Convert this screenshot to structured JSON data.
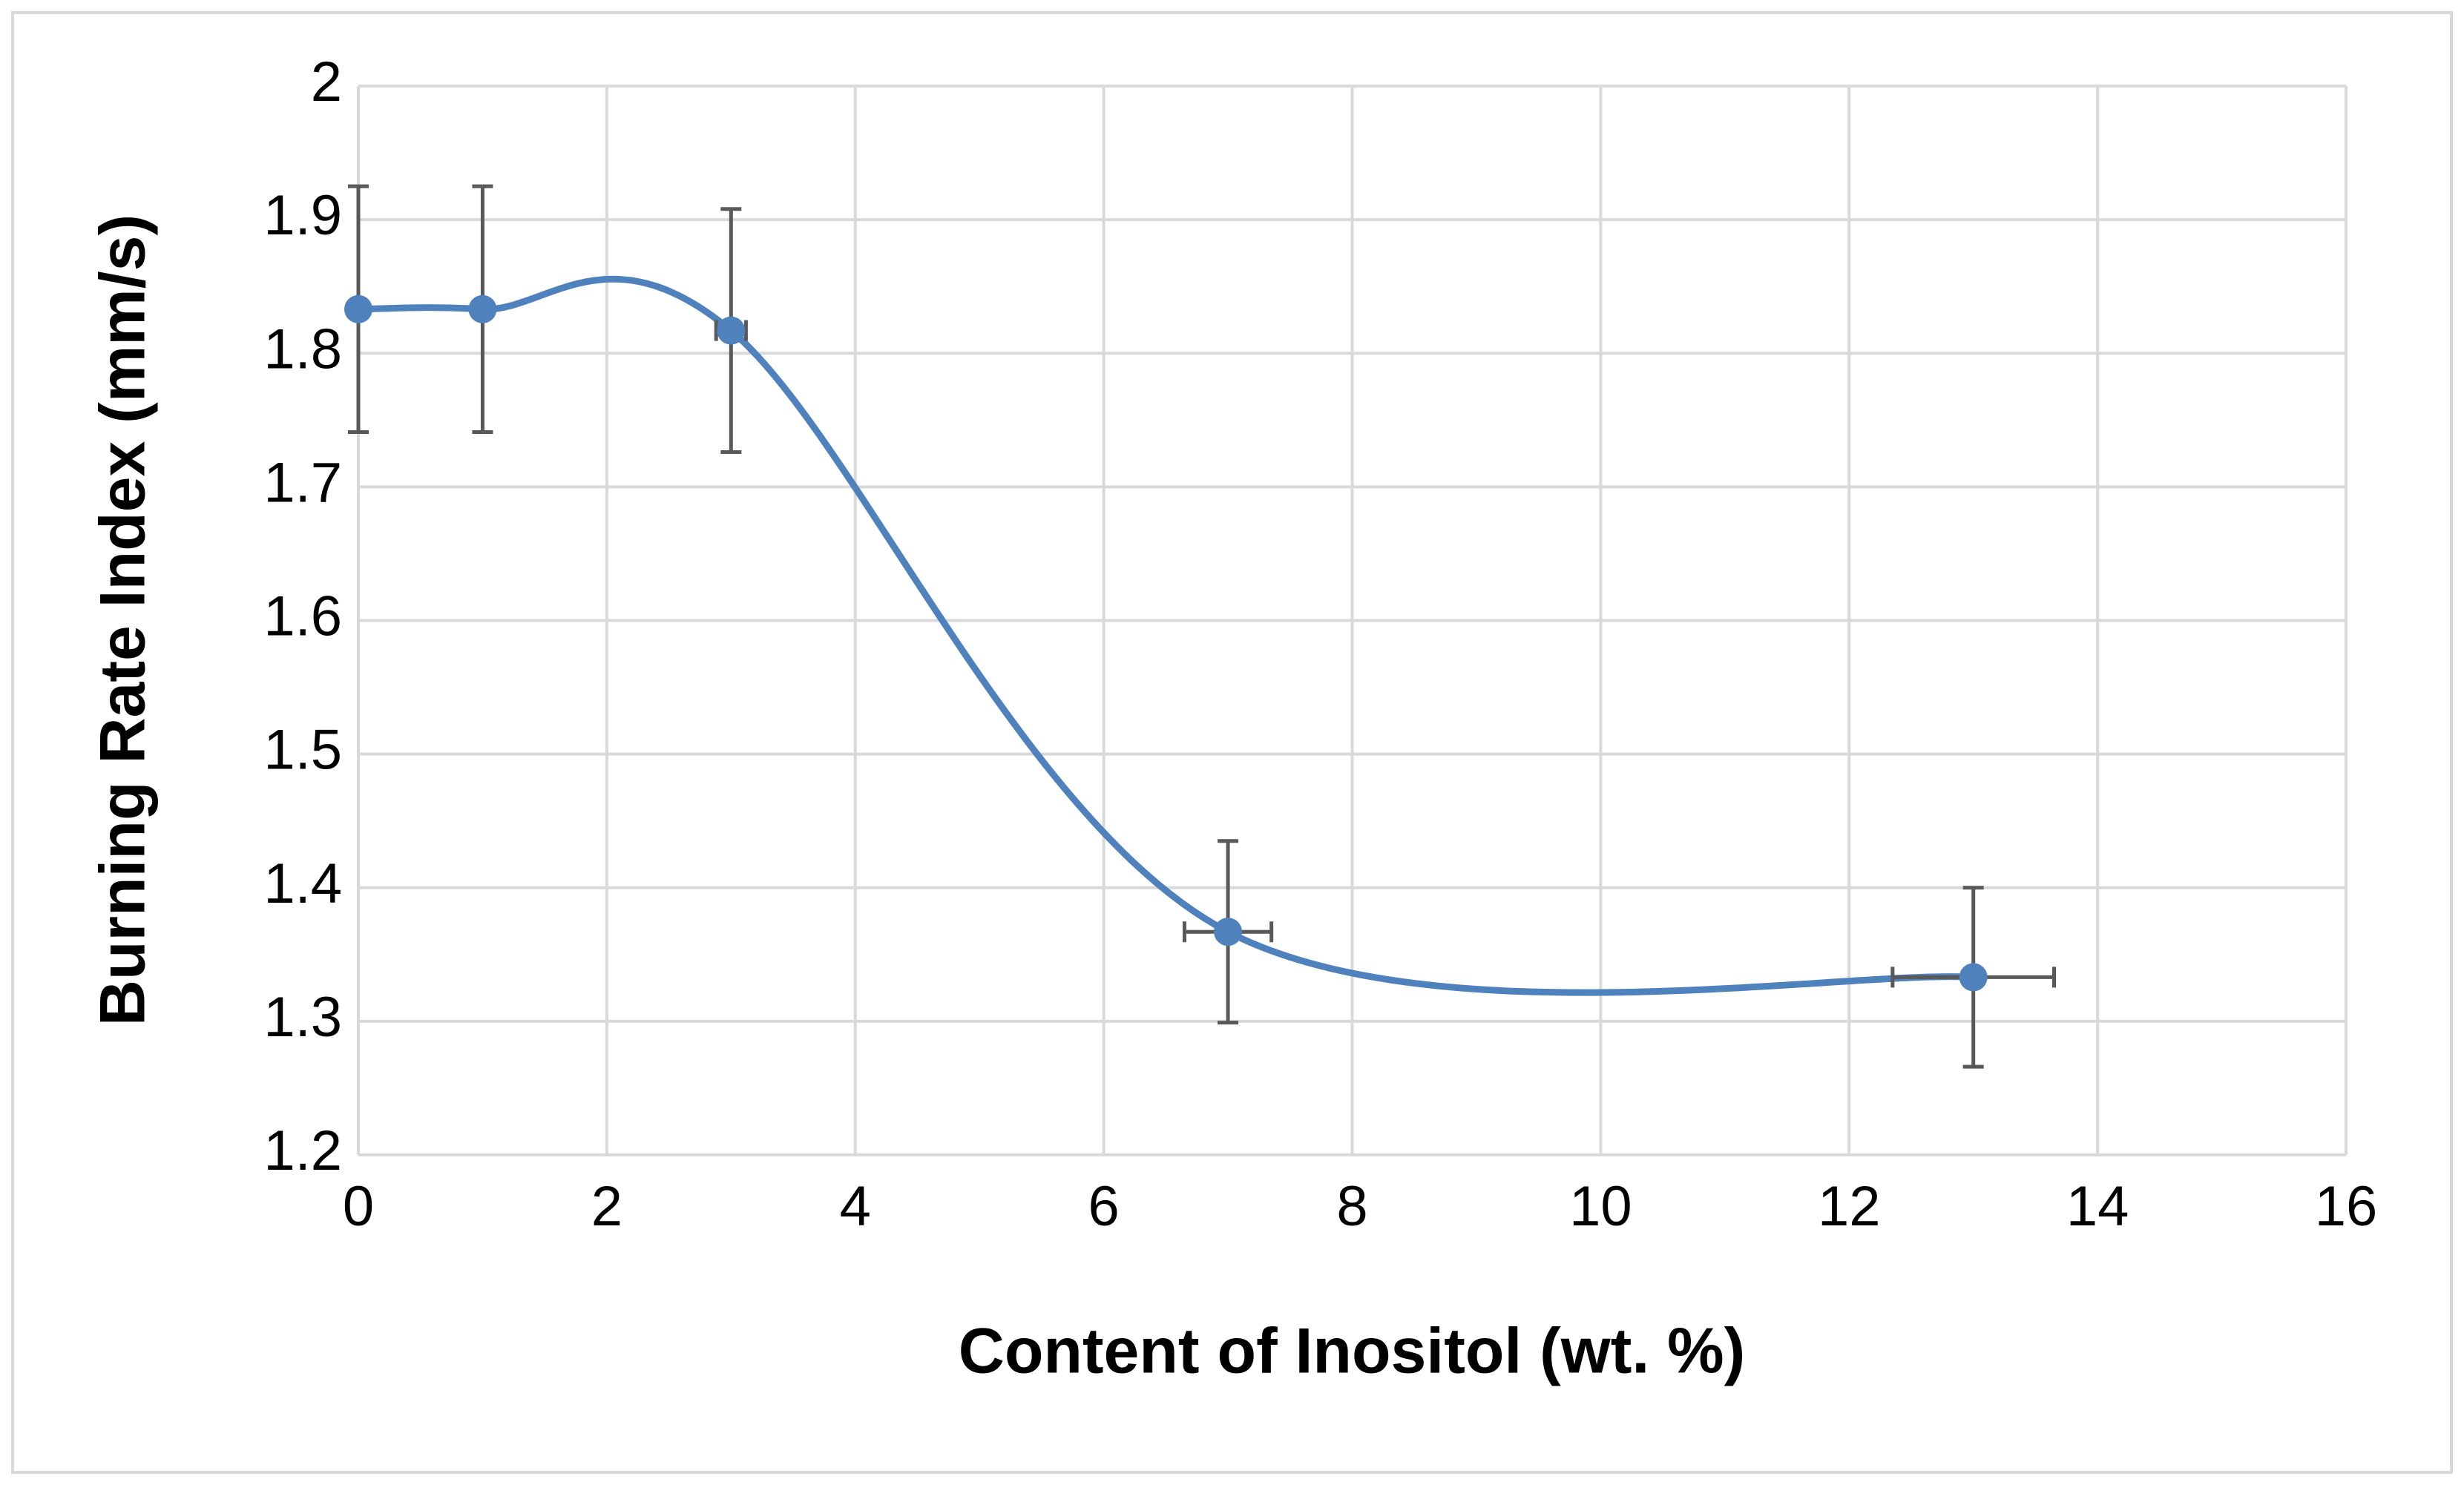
{
  "chart_data": {
    "type": "scatter",
    "x_label": "Content of Inositol (wt. %)",
    "y_label": "Burning Rate Index (mm/s)",
    "x": [
      0,
      1,
      3,
      7,
      13
    ],
    "series": [
      {
        "color": "#4f81bd",
        "values": [
          1.833,
          1.833,
          1.817,
          1.367,
          1.333
        ],
        "yerr": [
          0.092,
          0.092,
          0.091,
          0.068,
          0.067
        ],
        "xerr": [
          0,
          0,
          0.12,
          0.35,
          0.65
        ]
      }
    ],
    "xlim": [
      0,
      16
    ],
    "xticks": [
      0,
      2,
      4,
      6,
      8,
      10,
      12,
      14,
      16
    ],
    "ylim": [
      1.2,
      2
    ],
    "yticks": [
      1.2,
      1.3,
      1.4,
      1.5,
      1.6,
      1.7,
      1.8,
      1.9,
      2
    ],
    "grid": true,
    "smooth": true,
    "error_bar_color": "#595959"
  }
}
